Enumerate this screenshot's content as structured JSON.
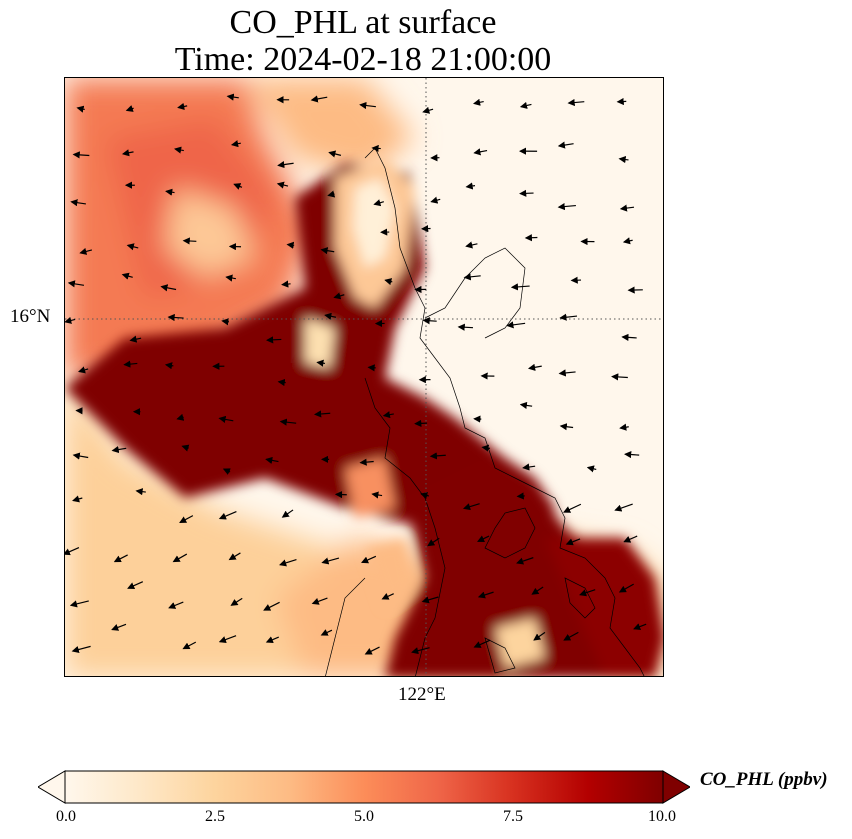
{
  "title": {
    "line1": "CO_PHL at surface",
    "line2": "Time: 2024-02-18 21:00:00"
  },
  "map": {
    "latitude_label": "16°N",
    "longitude_label": "122°E",
    "gridline_style": "dotted",
    "coastlines": true,
    "wind_vectors": true
  },
  "colorbar": {
    "label": "CO_PHL (ppbv)",
    "ticks": [
      "0.0",
      "2.5",
      "5.0",
      "7.5",
      "10.0"
    ],
    "min": 0,
    "max": 10,
    "colormap": "OrRd",
    "extend": "both",
    "colors": [
      "#fff7ec",
      "#fee8c8",
      "#fdd49e",
      "#fdbb84",
      "#fc8d59",
      "#ef6548",
      "#d7301f",
      "#b30000",
      "#7f0000"
    ]
  }
}
